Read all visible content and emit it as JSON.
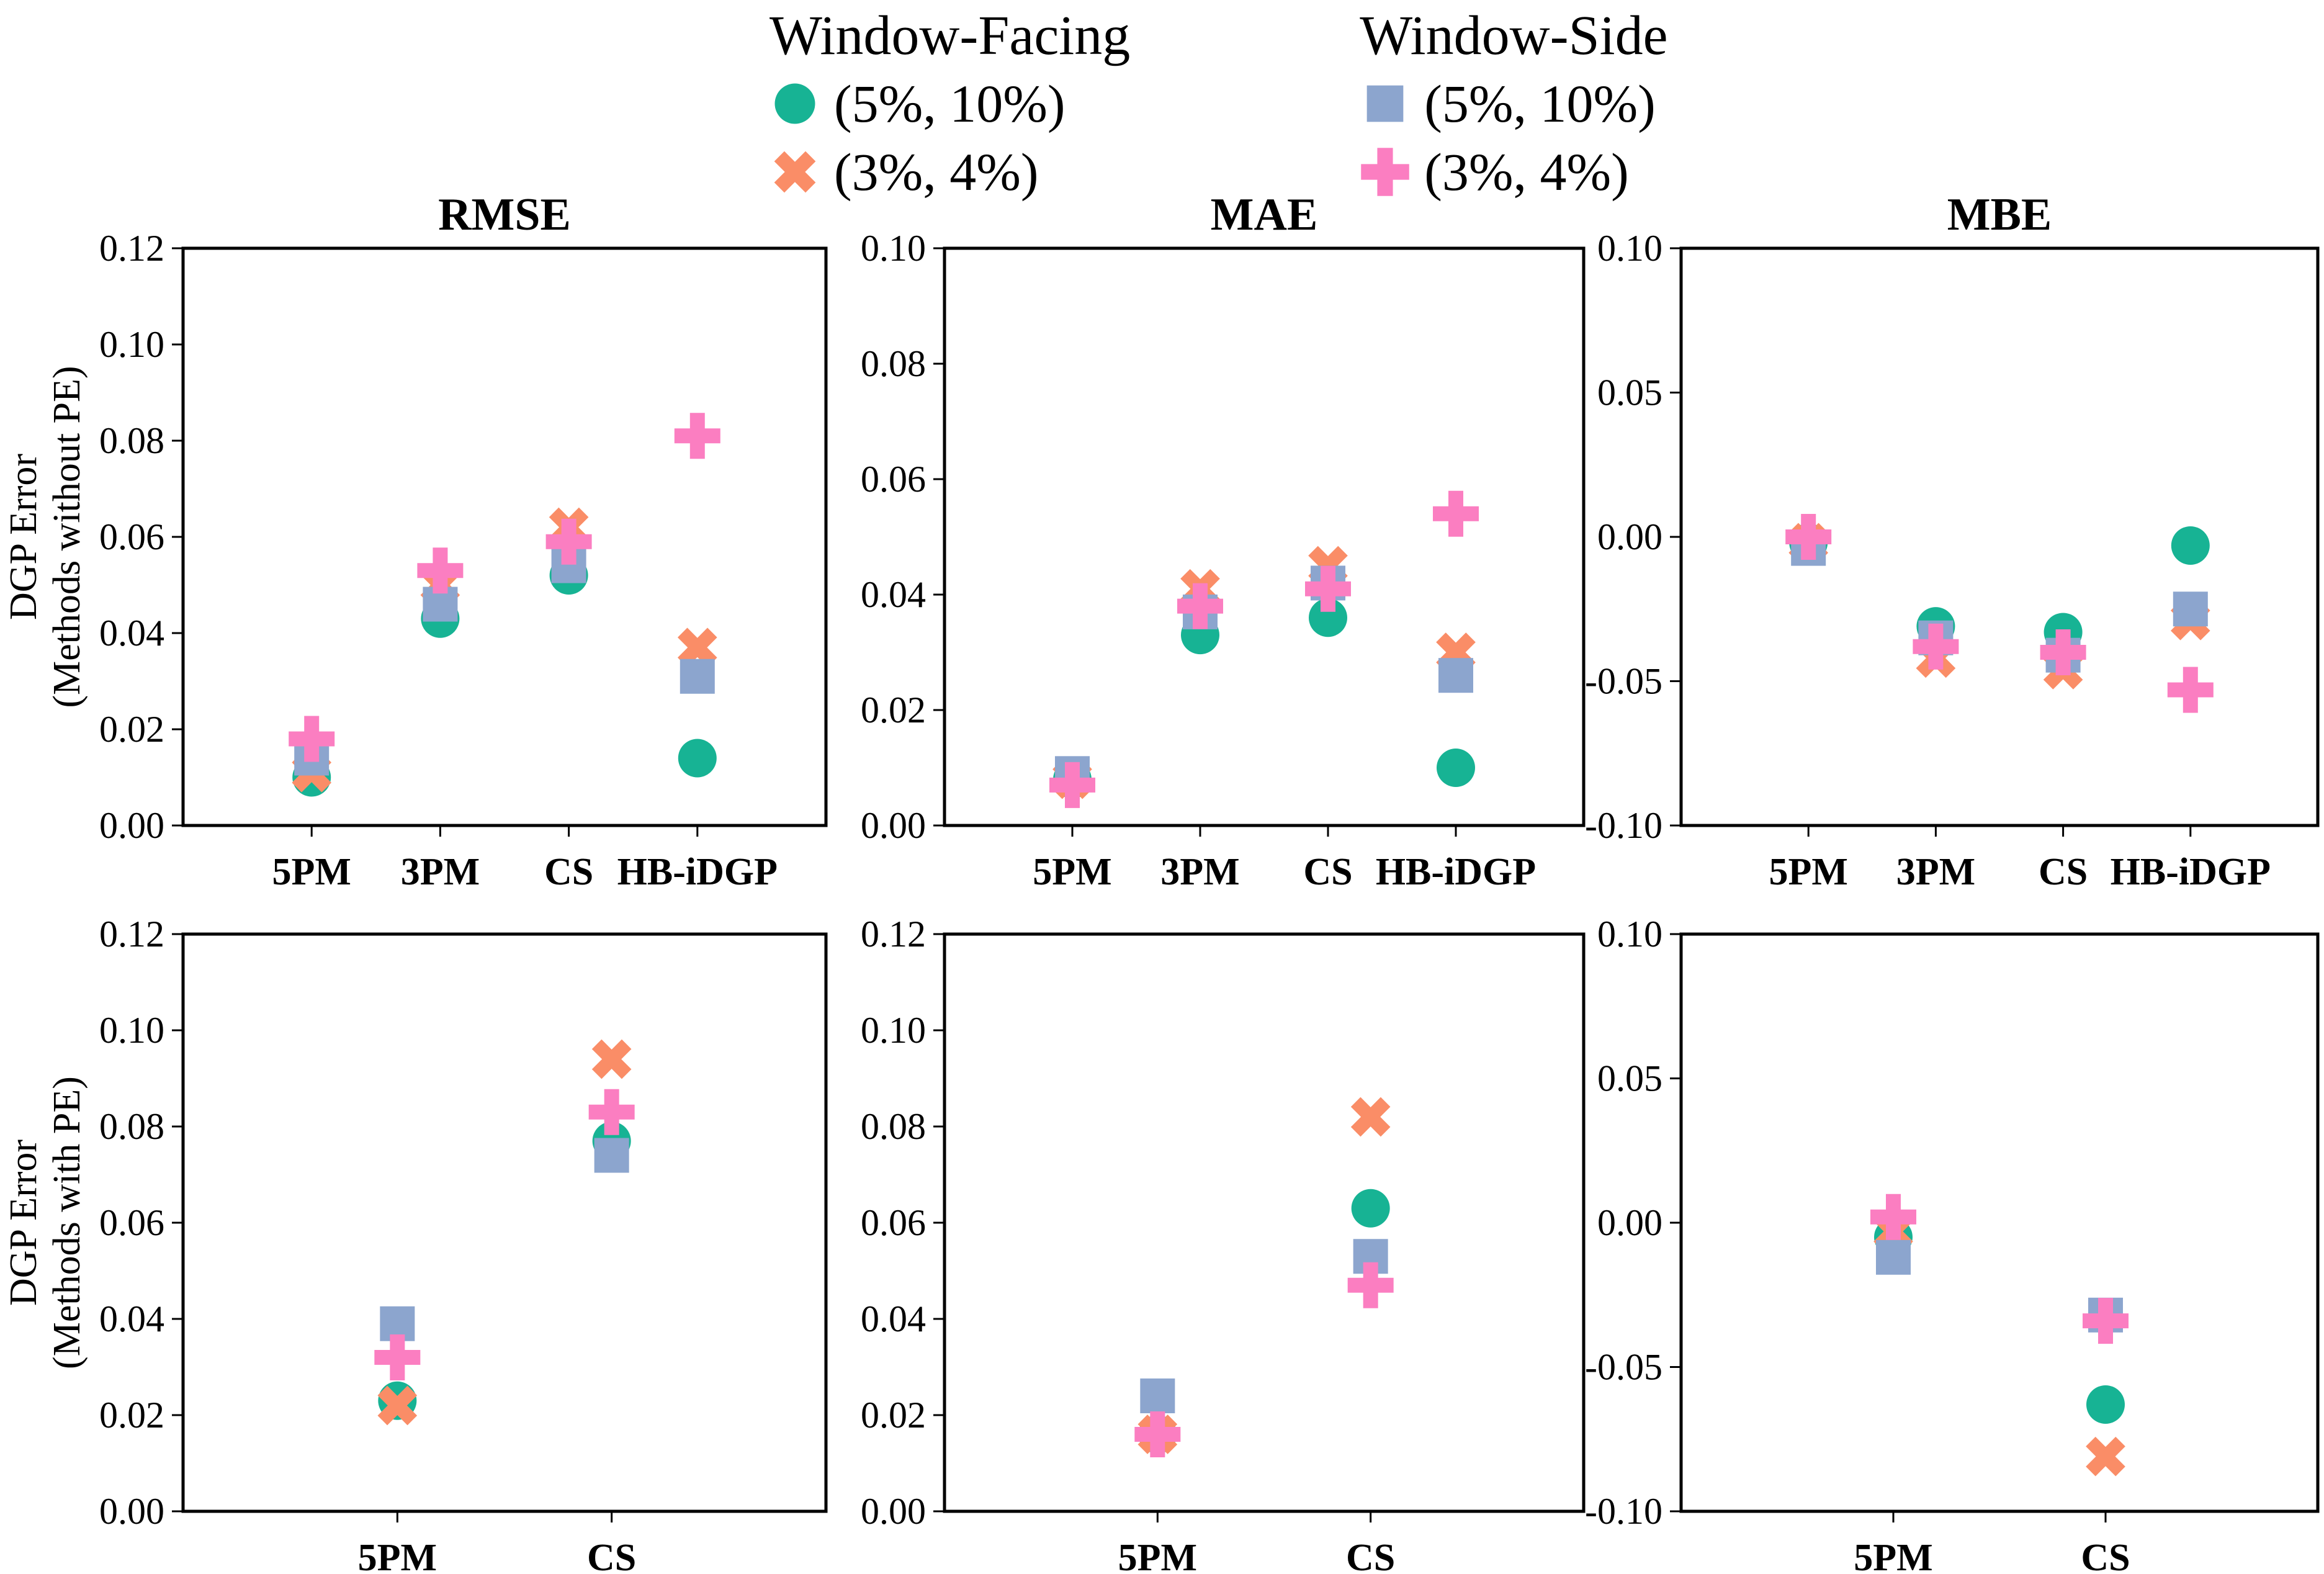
{
  "legend": {
    "groups": [
      {
        "title": "Window-Facing",
        "items": [
          {
            "marker": "circle",
            "color": "#17B394",
            "label": "(5%, 10%)"
          },
          {
            "marker": "x",
            "color": "#FA8D67",
            "label": "(3%, 4%)"
          }
        ]
      },
      {
        "title": "Window-Side",
        "items": [
          {
            "marker": "square",
            "color": "#8CA5CE",
            "label": "(5%, 10%)"
          },
          {
            "marker": "plus",
            "color": "#FB7EC1",
            "label": "(3%, 4%)"
          }
        ]
      }
    ]
  },
  "chart_data": [
    {
      "id": "rmse-no-pe",
      "type": "scatter",
      "title": "RMSE",
      "ylabel_lines": [
        "DGP Error",
        "(Methods without PE)"
      ],
      "categories": [
        "5PM",
        "3PM",
        "CS",
        "HB-iDGP"
      ],
      "ylim": [
        0,
        0.12
      ],
      "grid": false,
      "yticks": {
        "values": [
          0,
          0.02,
          0.04,
          0.06,
          0.08,
          0.1,
          0.12
        ],
        "labels": [
          "0.00",
          "0.02",
          "0.04",
          "0.06",
          "0.08",
          "0.10",
          "0.12"
        ]
      },
      "series": [
        {
          "name": "Window-Facing (5%, 10%)",
          "marker": "circle",
          "color": "#17B394",
          "values": [
            0.01,
            0.043,
            0.052,
            0.014
          ]
        },
        {
          "name": "Window-Facing (3%, 4%)",
          "marker": "x",
          "color": "#FA8D67",
          "values": [
            0.011,
            0.05,
            0.062,
            0.037
          ]
        },
        {
          "name": "Window-Side (5%, 10%)",
          "marker": "square",
          "color": "#8CA5CE",
          "values": [
            0.014,
            0.046,
            0.054,
            0.031
          ]
        },
        {
          "name": "Window-Side (3%, 4%)",
          "marker": "plus",
          "color": "#FB7EC1",
          "values": [
            0.018,
            0.053,
            0.059,
            0.081
          ]
        }
      ]
    },
    {
      "id": "mae-no-pe",
      "type": "scatter",
      "title": "MAE",
      "ylabel_lines": [],
      "categories": [
        "5PM",
        "3PM",
        "CS",
        "HB-iDGP"
      ],
      "ylim": [
        0,
        0.1
      ],
      "grid": false,
      "yticks": {
        "values": [
          0,
          0.02,
          0.04,
          0.06,
          0.08,
          0.1
        ],
        "labels": [
          "0.00",
          "0.02",
          "0.04",
          "0.06",
          "0.08",
          "0.10"
        ]
      },
      "series": [
        {
          "name": "Window-Facing (5%, 10%)",
          "marker": "circle",
          "color": "#17B394",
          "values": [
            0.008,
            0.033,
            0.036,
            0.01
          ]
        },
        {
          "name": "Window-Facing (3%, 4%)",
          "marker": "x",
          "color": "#FA8D67",
          "values": [
            0.008,
            0.041,
            0.045,
            0.03
          ]
        },
        {
          "name": "Window-Side (5%, 10%)",
          "marker": "square",
          "color": "#8CA5CE",
          "values": [
            0.009,
            0.037,
            0.042,
            0.026
          ]
        },
        {
          "name": "Window-Side (3%, 4%)",
          "marker": "plus",
          "color": "#FB7EC1",
          "values": [
            0.007,
            0.038,
            0.041,
            0.054
          ]
        }
      ]
    },
    {
      "id": "mbe-no-pe",
      "type": "scatter",
      "title": "MBE",
      "ylabel_lines": [],
      "categories": [
        "5PM",
        "3PM",
        "CS",
        "HB-iDGP"
      ],
      "ylim": [
        -0.1,
        0.1
      ],
      "grid": false,
      "yticks": {
        "values": [
          -0.1,
          -0.05,
          0,
          0.05,
          0.1
        ],
        "labels": [
          "-0.10",
          "-0.05",
          "0.00",
          "0.05",
          "0.10"
        ]
      },
      "series": [
        {
          "name": "Window-Facing (5%, 10%)",
          "marker": "circle",
          "color": "#17B394",
          "values": [
            -0.002,
            -0.031,
            -0.033,
            -0.003
          ]
        },
        {
          "name": "Window-Facing (3%, 4%)",
          "marker": "x",
          "color": "#FA8D67",
          "values": [
            -0.002,
            -0.042,
            -0.046,
            -0.029
          ]
        },
        {
          "name": "Window-Side (5%, 10%)",
          "marker": "square",
          "color": "#8CA5CE",
          "values": [
            -0.004,
            -0.035,
            -0.041,
            -0.025
          ]
        },
        {
          "name": "Window-Side (3%, 4%)",
          "marker": "plus",
          "color": "#FB7EC1",
          "values": [
            0.0,
            -0.038,
            -0.04,
            -0.053
          ]
        }
      ]
    },
    {
      "id": "rmse-pe",
      "type": "scatter",
      "title": "",
      "ylabel_lines": [
        "DGP Error",
        "(Methods with PE)"
      ],
      "categories": [
        "5PM",
        "CS"
      ],
      "ylim": [
        0,
        0.12
      ],
      "grid": false,
      "yticks": {
        "values": [
          0,
          0.02,
          0.04,
          0.06,
          0.08,
          0.1,
          0.12
        ],
        "labels": [
          "0.00",
          "0.02",
          "0.04",
          "0.06",
          "0.08",
          "0.10",
          "0.12"
        ]
      },
      "series": [
        {
          "name": "Window-Facing (5%, 10%)",
          "marker": "circle",
          "color": "#17B394",
          "values": [
            0.023,
            0.077
          ]
        },
        {
          "name": "Window-Facing (3%, 4%)",
          "marker": "x",
          "color": "#FA8D67",
          "values": [
            0.022,
            0.094
          ]
        },
        {
          "name": "Window-Side (5%, 10%)",
          "marker": "square",
          "color": "#8CA5CE",
          "values": [
            0.039,
            0.074
          ]
        },
        {
          "name": "Window-Side (3%, 4%)",
          "marker": "plus",
          "color": "#FB7EC1",
          "values": [
            0.032,
            0.083
          ]
        }
      ]
    },
    {
      "id": "mae-pe",
      "type": "scatter",
      "title": "",
      "ylabel_lines": [],
      "categories": [
        "5PM",
        "CS"
      ],
      "ylim": [
        0,
        0.12
      ],
      "grid": false,
      "yticks": {
        "values": [
          0,
          0.02,
          0.04,
          0.06,
          0.08,
          0.1,
          0.12
        ],
        "labels": [
          "0.00",
          "0.02",
          "0.04",
          "0.06",
          "0.08",
          "0.10",
          "0.12"
        ]
      },
      "series": [
        {
          "name": "Window-Facing (5%, 10%)",
          "marker": "circle",
          "color": "#17B394",
          "values": [
            0.016,
            0.063
          ]
        },
        {
          "name": "Window-Facing (3%, 4%)",
          "marker": "x",
          "color": "#FA8D67",
          "values": [
            0.016,
            0.082
          ]
        },
        {
          "name": "Window-Side (5%, 10%)",
          "marker": "square",
          "color": "#8CA5CE",
          "values": [
            0.024,
            0.053
          ]
        },
        {
          "name": "Window-Side (3%, 4%)",
          "marker": "plus",
          "color": "#FB7EC1",
          "values": [
            0.016,
            0.047
          ]
        }
      ]
    },
    {
      "id": "mbe-pe",
      "type": "scatter",
      "title": "",
      "ylabel_lines": [],
      "categories": [
        "5PM",
        "CS"
      ],
      "ylim": [
        -0.1,
        0.1
      ],
      "grid": false,
      "yticks": {
        "values": [
          -0.1,
          -0.05,
          0,
          0.05,
          0.1
        ],
        "labels": [
          "-0.10",
          "-0.05",
          "0.00",
          "0.05",
          "0.10"
        ]
      },
      "series": [
        {
          "name": "Window-Facing (5%, 10%)",
          "marker": "circle",
          "color": "#17B394",
          "values": [
            -0.005,
            -0.063
          ]
        },
        {
          "name": "Window-Facing (3%, 4%)",
          "marker": "x",
          "color": "#FA8D67",
          "values": [
            -0.003,
            -0.081
          ]
        },
        {
          "name": "Window-Side (5%, 10%)",
          "marker": "square",
          "color": "#8CA5CE",
          "values": [
            -0.012,
            -0.032
          ]
        },
        {
          "name": "Window-Side (3%, 4%)",
          "marker": "plus",
          "color": "#FB7EC1",
          "values": [
            0.002,
            -0.034
          ]
        }
      ]
    }
  ]
}
